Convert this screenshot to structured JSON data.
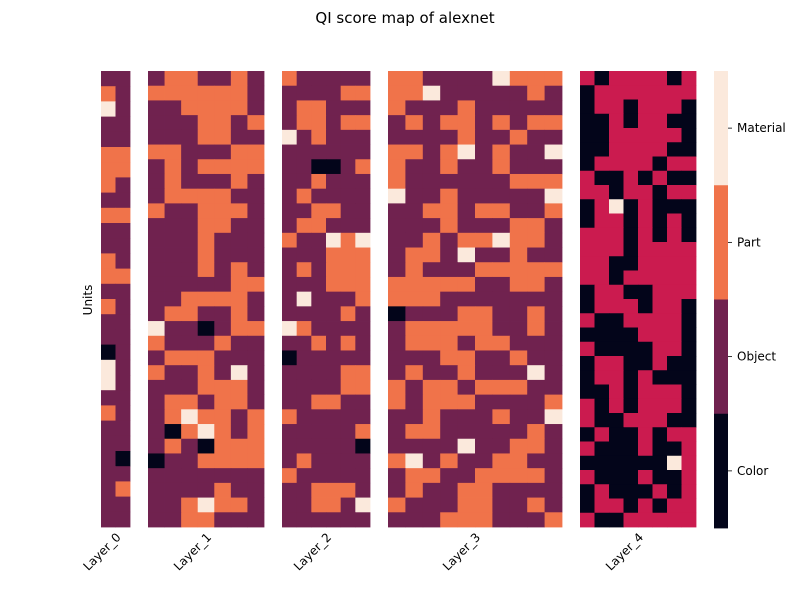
{
  "chart_data": {
    "type": "heatmap",
    "title": "QI score map of alexnet",
    "ylabel": "Units",
    "categories_legend": [
      "Material",
      "Part",
      "Object",
      "Color"
    ],
    "colors": {
      "Material": "#fbe9dc",
      "Part": "#f0734a",
      "Object": "#70224f",
      "Color": "#03051a"
    },
    "layers": [
      {
        "name": "Layer_0",
        "rows": [
          "OO",
          "PO",
          "MO",
          "OO",
          "OO",
          "PP",
          "PP",
          "PO",
          "OO",
          "PP",
          "OO",
          "OO",
          "PO",
          "PP",
          "OO",
          "PO",
          "OO",
          "OO",
          "CO",
          "MO",
          "MO",
          "OO",
          "PO",
          "OO",
          "OO",
          "OC",
          "OO",
          "OP",
          "OO",
          "OO"
        ]
      },
      {
        "name": "Layer_1",
        "rows": [
          "OPPOOPO",
          "PPPPPPO",
          "OOPPPPO",
          "OOOPPOP",
          "OOOPPOO",
          "PPOOOPP",
          "OPOPPPP",
          "OPOOOPO",
          "OPPPPOO",
          "POOPPPO",
          "OOOPPOO",
          "OOOPOOO",
          "OOOPOOO",
          "OOOPOPO",
          "OOOOOPP",
          "OOPPPPO",
          "OPPOOPO",
          "MOOCOPP",
          "POOOPOO",
          "OPPPOOO",
          "POOPOMO",
          "OOOPPPO",
          "OPPOPPO",
          "OPMPPOP",
          "OCPMPOP",
          "OPOCPPP",
          "COOPPPP",
          "OOOOOOO",
          "OOOOPOO",
          "OOPMPPO",
          "OOPPOOO"
        ]
      },
      {
        "name": "Layer_2",
        "rows": [
          "POOOOO",
          "OOOOPP",
          "OPPOOO",
          "OPPOPP",
          "MOPOOO",
          "OOOOOO",
          "OOCCOP",
          "OOPOOO",
          "OPOOOO",
          "OOPPOO",
          "OPPOOO",
          "POOMPM",
          "OOOPPP",
          "OPOPPP",
          "OOOPPP",
          "OMOOOP",
          "OOOOPO",
          "MPOOOO",
          "OOPOPO",
          "COOOOO",
          "OOOOPP",
          "OOOOPP",
          "OOPPOO",
          "POOOOO",
          "OOOOOP",
          "OOOOOC",
          "OPOOOO",
          "POOOOO",
          "OOPPPO",
          "OOPPOM",
          "OOOOOO"
        ]
      },
      {
        "name": "Layer_3",
        "rows": [
          "PPOOOOMPPP",
          "PPMOOOOOPO",
          "POOOPOOOOO",
          "OPOPPOPOPP",
          "OOOOPOOPOO",
          "PPOPMOPOOM",
          "POOPOOPOOO",
          "POOOOOOPPP",
          "MOOPOOOOOM",
          "OOPPOPPOOP",
          "OOOPOOOPPO",
          "OOPOPPMPPO",
          "OPPOMOOPOO",
          "OPOOOPPPPP",
          "PPPPPOOPPO",
          "PPPOOOOOOO",
          "COOOPPOOPO",
          "OPPPPPOOPO",
          "OPPPOPPOOO",
          "OOOPPOOPOO",
          "OPOOPOOOMO",
          "POPPOPPPOO",
          "POPPPOOOOP",
          "OOPOOOPOOM",
          "OPPOOOOOPO",
          "OOOOMOOPPO",
          "PMOPOOPPOO",
          "OPPOOPPPPO",
          "OPOOPPOOOO",
          "POOOPPOOPO",
          "OOOPPPOOOP"
        ]
      },
      {
        "name": "Layer_4",
        "rows": [
          "RCRRRRCR",
          "CRRRRRRR",
          "CRRCRRRC",
          "CCRCRRCC",
          "CCRRRRRC",
          "CCRRRRCC",
          "CRRRRCRR",
          "RCCRCRCC",
          "RRCRRCRR",
          "CRMCRCCC",
          "CRRCRCRC",
          "RRRCRCRC",
          "RRRCRRRR",
          "RRCCRRRR",
          "RRCRRRRR",
          "CRRCCRRR",
          "CRRRCRRC",
          "RCCRRRRC",
          "CCCCRRRC",
          "RCCCCRRC",
          "CRRCCRCC",
          "CRRCRCCC",
          "CCRCRRRC",
          "RCRCRRRC",
          "RCCRRRCC",
          "CRCCRCRR",
          "RCCCRCCR",
          "CCCCCCMR",
          "RCCCRCCR",
          "CRCCCRCR",
          "CRRCRCRR",
          "RCCRRRRR"
        ]
      }
    ]
  }
}
